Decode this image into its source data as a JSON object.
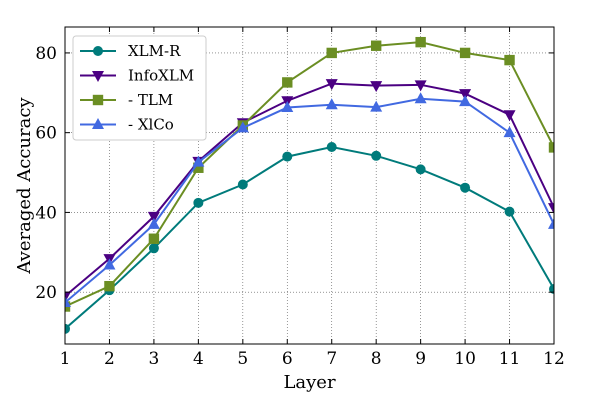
{
  "chart_data": {
    "type": "line",
    "xlabel": "Layer",
    "ylabel": "Averaged Accuracy",
    "xlim": [
      1,
      12
    ],
    "ylim": [
      7,
      86.5
    ],
    "x": [
      1,
      2,
      3,
      4,
      5,
      6,
      7,
      8,
      9,
      10,
      11,
      12
    ],
    "xticks": [
      1,
      2,
      3,
      4,
      5,
      6,
      7,
      8,
      9,
      10,
      11,
      12
    ],
    "yticks": [
      20,
      40,
      60,
      80
    ],
    "grid": true,
    "legend_position": "top-left",
    "series": [
      {
        "name": "XLM-R",
        "color": "#007b7b",
        "marker": "circle",
        "values": [
          10.8,
          20.5,
          31.0,
          42.4,
          47.0,
          54.0,
          56.4,
          54.2,
          50.8,
          46.2,
          40.2,
          20.8
        ]
      },
      {
        "name": "InfoXLM",
        "color": "#4b0082",
        "marker": "triangle-down",
        "values": [
          19.0,
          28.4,
          39.0,
          52.8,
          62.5,
          68.0,
          72.3,
          71.8,
          72.0,
          69.8,
          64.5,
          41.2
        ]
      },
      {
        "name": "- TLM",
        "color": "#6b8e23",
        "marker": "square",
        "values": [
          16.4,
          21.5,
          33.4,
          51.2,
          61.8,
          72.6,
          80.0,
          81.8,
          82.7,
          80.0,
          78.2,
          56.3
        ]
      },
      {
        "name": "- XlCo",
        "color": "#4169e1",
        "marker": "triangle-up",
        "values": [
          17.4,
          26.8,
          37.0,
          52.6,
          61.2,
          66.3,
          67.0,
          66.4,
          68.5,
          67.8,
          60.0,
          37.0
        ]
      }
    ]
  }
}
